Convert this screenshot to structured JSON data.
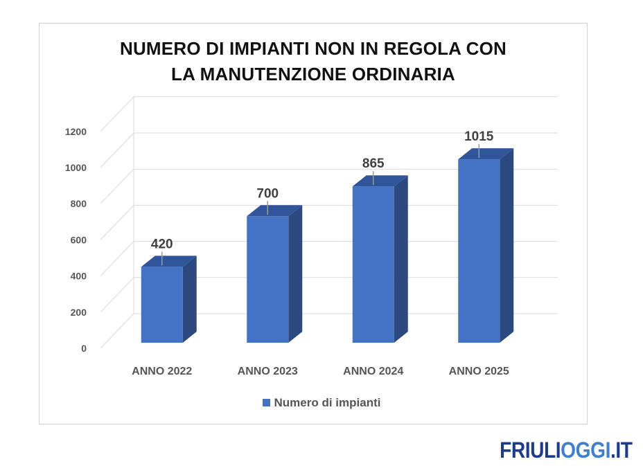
{
  "chart_data": {
    "type": "bar",
    "title_lines": [
      "NUMERO DI IMPIANTI NON IN REGOLA CON",
      "LA MANUTENZIONE ORDINARIA"
    ],
    "categories": [
      "ANNO 2022",
      "ANNO 2023",
      "ANNO 2024",
      "ANNO 2025"
    ],
    "series": [
      {
        "name": "Numero di impianti",
        "values": [
          420,
          700,
          865,
          1015
        ]
      }
    ],
    "data_labels": [
      "420",
      "700",
      "865",
      "1015"
    ],
    "ylim": [
      0,
      1200
    ],
    "yticks": [
      "0",
      "200",
      "400",
      "600",
      "800",
      "1000",
      "1200"
    ],
    "grid": true,
    "legend": "bottom",
    "style": "3d-column"
  },
  "colors": {
    "bar_front": "#4472c4",
    "bar_side": "#2c4a80",
    "bar_top": "#30559a",
    "grid": "#d9d9d9"
  },
  "logo": {
    "part1": "FRIULI",
    "part2": "OGGI",
    "part3": ".IT"
  }
}
